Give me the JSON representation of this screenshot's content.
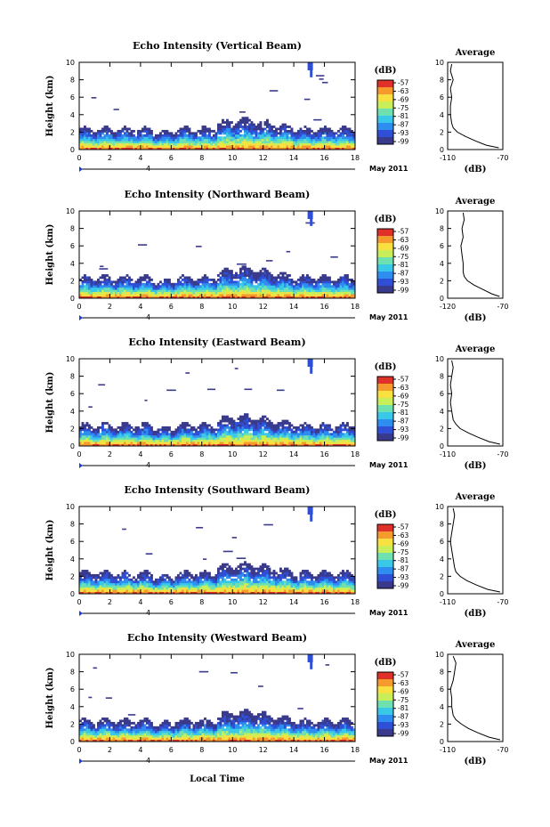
{
  "figure": {
    "x_label": "Local Time",
    "date_label": "May 2011",
    "day_marker": "4",
    "y_label": "Height (km)",
    "colorbar_unit": "(dB)",
    "average_title": "Average",
    "average_xlabel": "(dB)"
  },
  "colors": {
    "colormap": [
      "#3a3a8c",
      "#2f4fd6",
      "#2e8ef0",
      "#39c8e8",
      "#6fe0b0",
      "#c8ee5a",
      "#f7e040",
      "#f79a2e",
      "#e0302a"
    ]
  },
  "chart_data": [
    {
      "type": "heatmap",
      "title": "Echo Intensity (Vertical Beam)",
      "xlabel": "Local Time",
      "ylabel": "Height (km)",
      "xlim": [
        0,
        18
      ],
      "ylim": [
        0,
        10
      ],
      "x_ticks": [
        "0",
        "2",
        "4",
        "6",
        "8",
        "10",
        "12",
        "14",
        "16",
        "18"
      ],
      "y_ticks": [
        "0",
        "2",
        "4",
        "6",
        "8",
        "10"
      ],
      "colorbar": {
        "label": "(dB)",
        "ticks": [
          "-57",
          "-63",
          "-69",
          "-75",
          "-81",
          "-87",
          "-93",
          "-99"
        ]
      },
      "profile": {
        "title": "Average",
        "xlabel": "(dB)",
        "xlim": [
          -110,
          -70
        ],
        "x_ticks": [
          "-110",
          "-70"
        ],
        "y_ticks": [
          "0",
          "2",
          "4",
          "6",
          "8",
          "10"
        ],
        "heights": [
          0.2,
          0.5,
          1,
          1.5,
          2,
          2.5,
          3,
          4,
          5,
          6,
          7,
          8,
          9,
          9.8
        ],
        "values": [
          -73,
          -82,
          -90,
          -97,
          -103,
          -106,
          -107,
          -108,
          -108,
          -107,
          -108,
          -106,
          -108,
          -107
        ]
      }
    },
    {
      "type": "heatmap",
      "title": "Echo Intensity (Northward Beam)",
      "xlabel": "Local Time",
      "ylabel": "Height (km)",
      "xlim": [
        0,
        18
      ],
      "ylim": [
        0,
        10
      ],
      "x_ticks": [
        "0",
        "2",
        "4",
        "6",
        "8",
        "10",
        "12",
        "14",
        "16",
        "18"
      ],
      "y_ticks": [
        "0",
        "2",
        "4",
        "6",
        "8",
        "10"
      ],
      "colorbar": {
        "label": "(dB)",
        "ticks": [
          "-57",
          "-63",
          "-69",
          "-75",
          "-81",
          "-87",
          "-93",
          "-99"
        ]
      },
      "profile": {
        "title": "Average",
        "xlabel": "(dB)",
        "xlim": [
          -120,
          -70
        ],
        "x_ticks": [
          "-120",
          "-70"
        ],
        "y_ticks": [
          "0",
          "2",
          "4",
          "6",
          "8",
          "10"
        ],
        "heights": [
          0.2,
          0.5,
          1,
          1.5,
          2,
          2.5,
          3,
          4,
          5,
          6,
          7,
          8,
          9,
          9.8
        ],
        "values": [
          -73,
          -80,
          -88,
          -96,
          -102,
          -105,
          -106,
          -106,
          -107,
          -108,
          -106,
          -107,
          -105,
          -106
        ]
      }
    },
    {
      "type": "heatmap",
      "title": "Echo Intensity (Eastward Beam)",
      "xlabel": "Local Time",
      "ylabel": "Height (km)",
      "xlim": [
        0,
        18
      ],
      "ylim": [
        0,
        10
      ],
      "x_ticks": [
        "0",
        "2",
        "4",
        "6",
        "8",
        "10",
        "12",
        "14",
        "16",
        "18"
      ],
      "y_ticks": [
        "0",
        "2",
        "4",
        "6",
        "8",
        "10"
      ],
      "colorbar": {
        "label": "(dB)",
        "ticks": [
          "-57",
          "-63",
          "-69",
          "-75",
          "-81",
          "-87",
          "-93",
          "-99"
        ]
      },
      "profile": {
        "title": "Average",
        "xlabel": "(dB)",
        "xlim": [
          -110,
          -70
        ],
        "x_ticks": [
          "-110",
          "-70"
        ],
        "y_ticks": [
          "0",
          "2",
          "4",
          "6",
          "8",
          "10"
        ],
        "heights": [
          0.2,
          0.5,
          1,
          1.5,
          2,
          2.5,
          3,
          4,
          5,
          6,
          7,
          8,
          9,
          9.8
        ],
        "values": [
          -72,
          -80,
          -88,
          -95,
          -101,
          -104,
          -106,
          -107,
          -108,
          -107,
          -108,
          -107,
          -106,
          -107
        ]
      }
    },
    {
      "type": "heatmap",
      "title": "Echo Intensity (Southward Beam)",
      "xlabel": "Local Time",
      "ylabel": "Height (km)",
      "xlim": [
        0,
        18
      ],
      "ylim": [
        0,
        10
      ],
      "x_ticks": [
        "0",
        "2",
        "4",
        "6",
        "8",
        "10",
        "12",
        "14",
        "16",
        "18"
      ],
      "y_ticks": [
        "0",
        "2",
        "4",
        "6",
        "8",
        "10"
      ],
      "colorbar": {
        "label": "(dB)",
        "ticks": [
          "-57",
          "-63",
          "-69",
          "-75",
          "-81",
          "-87",
          "-93",
          "-99"
        ]
      },
      "profile": {
        "title": "Average",
        "xlabel": "(dB)",
        "xlim": [
          -110,
          -70
        ],
        "x_ticks": [
          "-110",
          "-70"
        ],
        "y_ticks": [
          "0",
          "2",
          "4",
          "6",
          "8",
          "10"
        ],
        "heights": [
          0.2,
          0.5,
          1,
          1.5,
          2,
          2.5,
          3,
          4,
          5,
          6,
          7,
          8,
          9,
          9.8
        ],
        "values": [
          -72,
          -81,
          -89,
          -96,
          -101,
          -104,
          -105,
          -106,
          -107,
          -108,
          -107,
          -106,
          -105,
          -106
        ]
      }
    },
    {
      "type": "heatmap",
      "title": "Echo Intensity (Westward Beam)",
      "xlabel": "Local Time",
      "ylabel": "Height (km)",
      "xlim": [
        0,
        18
      ],
      "ylim": [
        0,
        10
      ],
      "x_ticks": [
        "0",
        "2",
        "4",
        "6",
        "8",
        "10",
        "12",
        "14",
        "16",
        "18"
      ],
      "y_ticks": [
        "0",
        "2",
        "4",
        "6",
        "8",
        "10"
      ],
      "colorbar": {
        "label": "(dB)",
        "ticks": [
          "-57",
          "-63",
          "-69",
          "-75",
          "-81",
          "-87",
          "-93",
          "-99"
        ]
      },
      "profile": {
        "title": "Average",
        "xlabel": "(dB)",
        "xlim": [
          -110,
          -70
        ],
        "x_ticks": [
          "-110",
          "-70"
        ],
        "y_ticks": [
          "0",
          "2",
          "4",
          "6",
          "8",
          "10"
        ],
        "heights": [
          0.2,
          0.5,
          1,
          1.5,
          2,
          2.5,
          3,
          4,
          5,
          6,
          7,
          8,
          9,
          9.8
        ],
        "values": [
          -72,
          -80,
          -88,
          -95,
          -100,
          -104,
          -106,
          -107,
          -107,
          -108,
          -106,
          -105,
          -104,
          -106
        ]
      }
    }
  ]
}
